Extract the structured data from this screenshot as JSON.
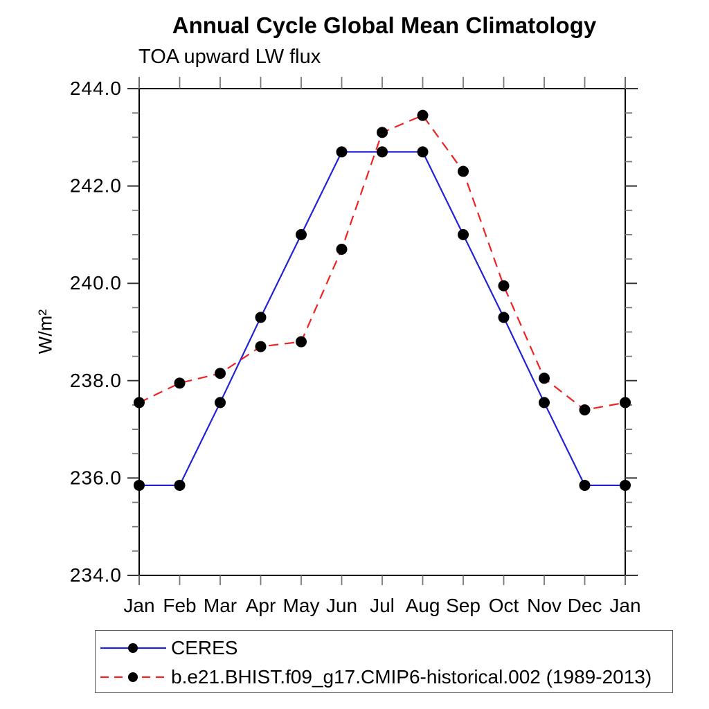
{
  "header": {
    "title": "Annual Cycle Global Mean Climatology",
    "subtitle": "TOA upward LW flux"
  },
  "chart_data": {
    "type": "line",
    "title": "Annual Cycle Global Mean Climatology",
    "subtitle": "TOA upward LW flux",
    "xlabel": "",
    "ylabel": "W/m²",
    "categories": [
      "Jan",
      "Feb",
      "Mar",
      "Apr",
      "May",
      "Jun",
      "Jul",
      "Aug",
      "Sep",
      "Oct",
      "Nov",
      "Dec",
      "Jan"
    ],
    "ylim": [
      234.0,
      244.0
    ],
    "y_ticks": [
      234.0,
      236.0,
      238.0,
      240.0,
      242.0,
      244.0
    ],
    "y_major_step": 2.0,
    "y_minor_step": 0.5,
    "y_tick_decimals": 1,
    "grid": false,
    "legend_position": "bottom-left-box",
    "axis_color": "#000000",
    "major_tick_color": "#333333",
    "minor_tick_color": "#777777",
    "marker_color": "#000000",
    "series": [
      {
        "name": "CERES",
        "color": "#2121d6",
        "line_style": "solid",
        "marker": "filled-circle",
        "values": [
          235.85,
          235.85,
          237.55,
          239.3,
          241.0,
          242.7,
          242.7,
          242.7,
          241.0,
          239.3,
          237.55,
          235.85,
          235.85
        ]
      },
      {
        "name": "b.e21.BHIST.f09_g17.CMIP6-historical.002 (1989-2013)",
        "color": "#ee2222",
        "line_style": "dashed",
        "marker": "filled-circle",
        "values": [
          237.55,
          237.95,
          238.15,
          238.7,
          238.8,
          240.7,
          243.1,
          243.45,
          242.3,
          239.95,
          238.05,
          237.4,
          237.55
        ]
      }
    ]
  }
}
